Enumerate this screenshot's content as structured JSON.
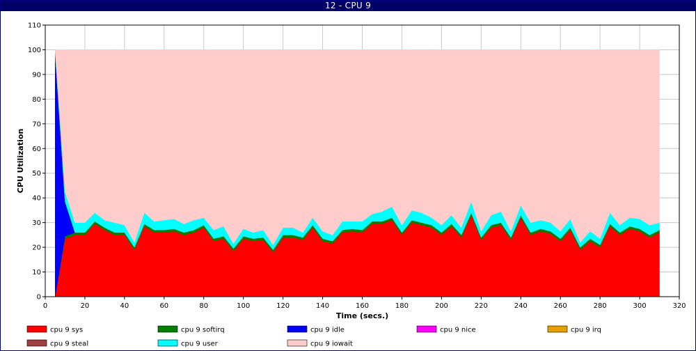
{
  "window": {
    "title": "12 - CPU 9"
  },
  "chart_data": {
    "type": "area",
    "stacked": true,
    "title": "12 - CPU 9",
    "xlabel": "Time (secs.)",
    "ylabel": "CPU Utilization",
    "xlim": [
      0,
      320
    ],
    "ylim": [
      0,
      110
    ],
    "x_ticks": [
      0,
      20,
      40,
      60,
      80,
      100,
      120,
      140,
      160,
      180,
      200,
      220,
      240,
      260,
      280,
      300,
      320
    ],
    "y_ticks": [
      0,
      10,
      20,
      30,
      40,
      50,
      60,
      70,
      80,
      90,
      100,
      110
    ],
    "grid": true,
    "legend_position": "bottom",
    "x": [
      5,
      10,
      15,
      20,
      25,
      30,
      35,
      40,
      45,
      50,
      55,
      60,
      65,
      70,
      75,
      80,
      85,
      90,
      95,
      100,
      105,
      110,
      115,
      120,
      125,
      130,
      135,
      140,
      145,
      150,
      155,
      160,
      165,
      170,
      175,
      180,
      185,
      190,
      195,
      200,
      205,
      210,
      215,
      220,
      225,
      230,
      235,
      240,
      245,
      250,
      255,
      260,
      265,
      270,
      275,
      280,
      285,
      290,
      295,
      300,
      305,
      310
    ],
    "series": [
      {
        "name": "cpu 9 sys",
        "color": "#ff0000",
        "values": [
          0,
          23.5,
          25,
          25,
          29.5,
          27,
          25,
          25,
          19,
          28.5,
          26,
          26,
          26.5,
          25,
          26,
          28,
          22.5,
          23.5,
          18.5,
          23.5,
          22.5,
          23,
          18,
          24,
          24,
          23,
          28,
          22.5,
          21.5,
          26,
          26.5,
          26,
          29.5,
          29.5,
          31,
          25,
          30,
          29,
          28,
          25,
          28.5,
          24,
          33,
          23,
          28,
          29,
          23,
          32,
          25,
          26.5,
          25.5,
          22.5,
          27,
          19,
          22.5,
          20,
          28.5,
          25,
          27.5,
          26.5,
          24,
          26
        ]
      },
      {
        "name": "cpu 9 softirq",
        "color": "#008000",
        "values": [
          0,
          1,
          1,
          1,
          1,
          1,
          1,
          1,
          1,
          1,
          1,
          1,
          1,
          1,
          1,
          1,
          1,
          1,
          1,
          1,
          1,
          1,
          1,
          1,
          1,
          1,
          1,
          1,
          1,
          1,
          1,
          1,
          1,
          1,
          1,
          1,
          1,
          1,
          1,
          1,
          1,
          1,
          1,
          1,
          1,
          1,
          1,
          1,
          1,
          1,
          1,
          1,
          1,
          1,
          1,
          1,
          1,
          1,
          1,
          1,
          1,
          1
        ]
      },
      {
        "name": "cpu 9 idle",
        "color": "#0000ff",
        "values": [
          99,
          14,
          0,
          0,
          0,
          0,
          0,
          0,
          0,
          0,
          0,
          0,
          0,
          0,
          0,
          0,
          0,
          0,
          0,
          0,
          0,
          0,
          0,
          0,
          0,
          0,
          0,
          0,
          0,
          0,
          0,
          0,
          0,
          0,
          0,
          0,
          0,
          0,
          0,
          0,
          0,
          0,
          0,
          0,
          0,
          0,
          0,
          0,
          0,
          0,
          0,
          0,
          0,
          0,
          0,
          0,
          0,
          0,
          0,
          0,
          0,
          0
        ]
      },
      {
        "name": "cpu 9 nice",
        "color": "#ff00ff",
        "values": [
          0,
          0,
          0,
          0,
          0,
          0,
          0,
          0,
          0,
          0,
          0,
          0,
          0,
          0,
          0,
          0,
          0,
          0,
          0,
          0,
          0,
          0,
          0,
          0,
          0,
          0,
          0,
          0,
          0,
          0,
          0,
          0,
          0,
          0,
          0,
          0,
          0,
          0,
          0,
          0,
          0,
          0,
          0,
          0,
          0,
          0,
          0,
          0,
          0,
          0,
          0,
          0,
          0,
          0,
          0,
          0,
          0,
          0,
          0,
          0,
          0,
          0
        ]
      },
      {
        "name": "cpu 9 irq",
        "color": "#e6a000",
        "values": [
          0,
          0,
          0,
          0,
          0,
          0,
          0,
          0,
          0,
          0,
          0,
          0,
          0,
          0,
          0,
          0,
          0,
          0,
          0,
          0,
          0,
          0,
          0,
          0,
          0,
          0,
          0,
          0,
          0,
          0,
          0,
          0,
          0,
          0,
          0,
          0,
          0,
          0,
          0,
          0,
          0,
          0,
          0,
          0,
          0,
          0,
          0,
          0,
          0,
          0,
          0,
          0,
          0,
          0,
          0,
          0,
          0,
          0,
          0,
          0,
          0,
          0
        ]
      },
      {
        "name": "cpu 9 steal",
        "color": "#a04040",
        "values": [
          0,
          0,
          0,
          0,
          0,
          0,
          0,
          0,
          0,
          0,
          0,
          0,
          0,
          0,
          0,
          0,
          0,
          0,
          0,
          0,
          0,
          0,
          0,
          0,
          0,
          0,
          0,
          0,
          0,
          0,
          0,
          0,
          0,
          0,
          0,
          0,
          0,
          0,
          0,
          0,
          0,
          0,
          0,
          0,
          0,
          0,
          0,
          0,
          0,
          0,
          0,
          0,
          0,
          0,
          0,
          0,
          0,
          0,
          0,
          0,
          0,
          0
        ]
      },
      {
        "name": "cpu 9 user",
        "color": "#00ffff",
        "values": [
          1,
          4,
          4,
          4,
          3.5,
          3,
          4,
          3,
          2,
          4.5,
          3.5,
          4,
          4,
          3.5,
          4,
          3,
          3.5,
          4,
          2,
          3,
          2.5,
          3,
          2,
          3,
          3,
          2,
          3,
          3,
          2.5,
          3.5,
          3,
          3.5,
          3,
          4,
          4.5,
          3,
          4,
          4,
          3,
          3,
          3.5,
          3,
          4.5,
          2.5,
          4,
          4.5,
          2.5,
          4,
          4,
          3.5,
          3.5,
          3,
          3.5,
          2,
          3,
          2.5,
          4.5,
          3,
          3.5,
          4,
          4,
          3
        ]
      },
      {
        "name": "cpu 9 iowait",
        "color": "#ffcccc",
        "values": [
          0,
          57.5,
          70,
          70,
          66,
          69,
          70,
          71,
          78,
          66,
          69.5,
          69,
          68.5,
          70.5,
          69,
          68,
          73,
          71.5,
          78.5,
          72.5,
          74,
          73,
          79,
          72,
          72,
          74,
          68,
          73.5,
          75,
          69.5,
          69.5,
          69.5,
          66.5,
          65.5,
          63.5,
          71,
          65,
          66,
          68,
          71,
          67,
          72,
          61.5,
          73.5,
          67,
          65.5,
          73.5,
          63,
          70,
          69,
          70,
          73.5,
          68.5,
          78,
          73.5,
          76.5,
          66,
          71,
          68,
          68.5,
          71,
          70
        ]
      }
    ]
  }
}
